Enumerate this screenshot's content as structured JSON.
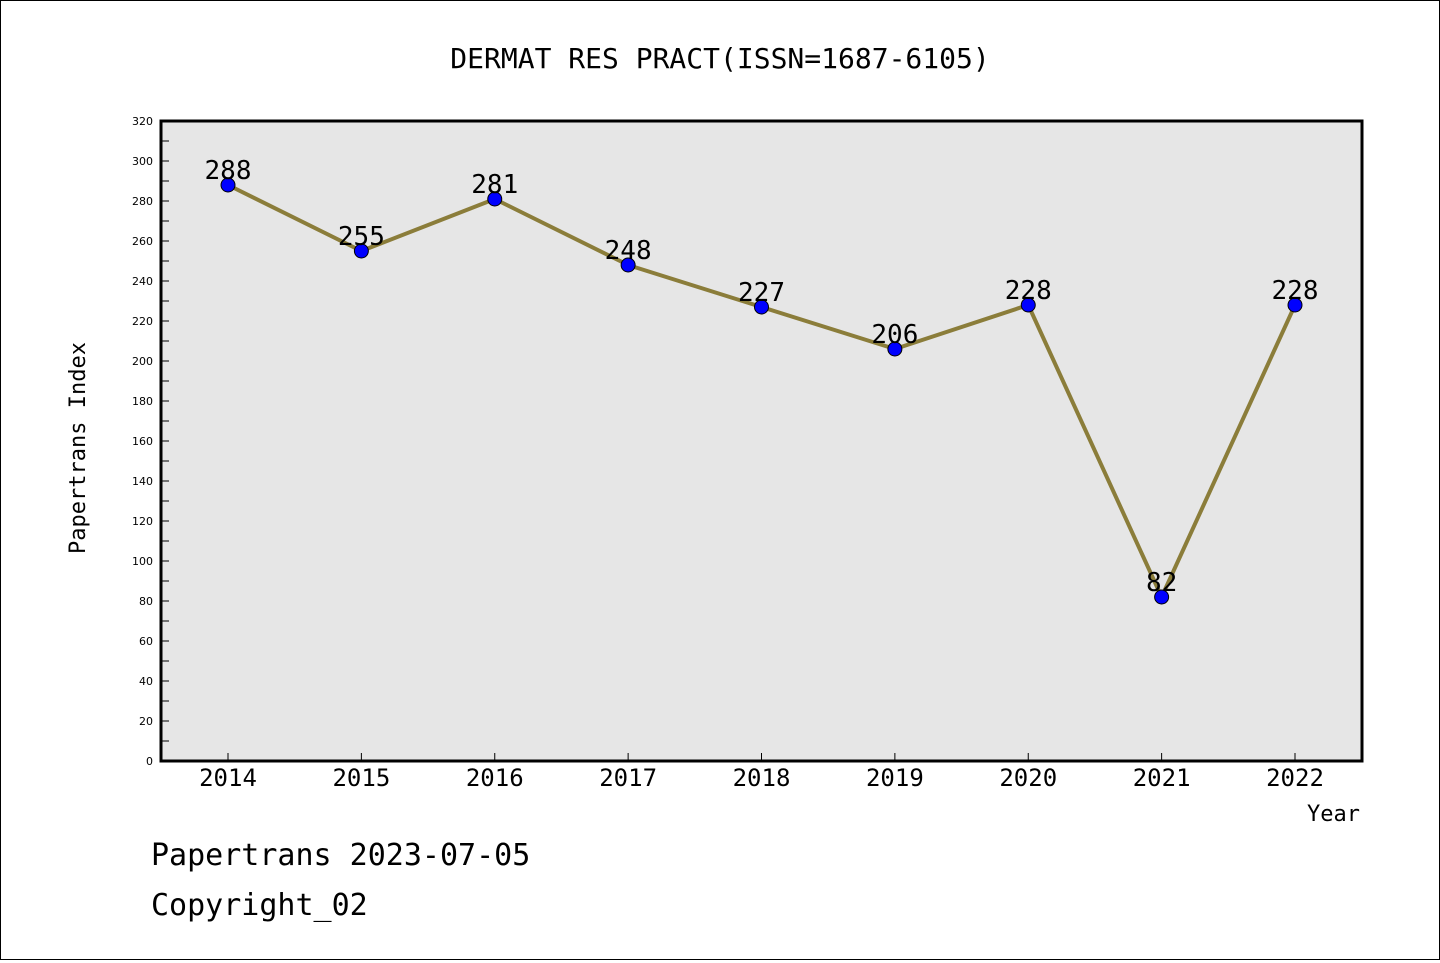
{
  "chart_data": {
    "type": "line",
    "title": "DERMAT RES PRACT(ISSN=1687-6105)",
    "xlabel": "Year",
    "ylabel": "Papertrans Index",
    "categories": [
      "2014",
      "2015",
      "2016",
      "2017",
      "2018",
      "2019",
      "2020",
      "2021",
      "2022"
    ],
    "series": [
      {
        "values": [
          288,
          255,
          281,
          248,
          227,
          206,
          228,
          82,
          228
        ]
      }
    ],
    "ylim": [
      0,
      320
    ],
    "yticks": [
      "0",
      "20",
      "40",
      "60",
      "80",
      "100",
      "120",
      "140",
      "160",
      "180",
      "200",
      "220",
      "240",
      "260",
      "280",
      "300",
      "320"
    ],
    "grid": false,
    "plot_background": "#e6e6e6",
    "line_color": "#8b7d3a",
    "marker_color": "#0000ff"
  },
  "footer": {
    "date_line": "Papertrans 2023-07-05",
    "copyright": "Copyright_02"
  }
}
